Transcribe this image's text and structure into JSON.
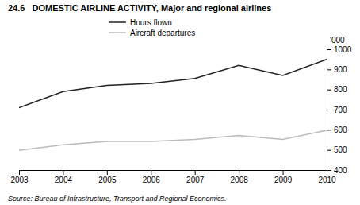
{
  "chart_data": {
    "type": "line",
    "title": "24.6   DOMESTIC AIRLINE ACTIVITY, Major and regional airlines",
    "x": [
      2003,
      2004,
      2005,
      2006,
      2007,
      2008,
      2009,
      2010
    ],
    "series": [
      {
        "name": "Hours flown",
        "color": "#222222",
        "values": [
          710,
          790,
          820,
          830,
          855,
          920,
          870,
          950
        ]
      },
      {
        "name": "Aircraft departures",
        "color": "#bbbbbb",
        "values": [
          498,
          525,
          542,
          542,
          552,
          572,
          552,
          597
        ]
      }
    ],
    "ylabel": "'000",
    "xlim": [
      2003,
      2010
    ],
    "xticks": [
      2003,
      2004,
      2005,
      2006,
      2007,
      2008,
      2009,
      2010
    ],
    "ylim": [
      400,
      1000
    ],
    "yticks": [
      400,
      500,
      600,
      700,
      800,
      900,
      1000
    ],
    "annotations": [
      "Source: Bureau of Infrastructure, Transport and Regional Economics."
    ],
    "legend": "upper center",
    "grid": false
  }
}
